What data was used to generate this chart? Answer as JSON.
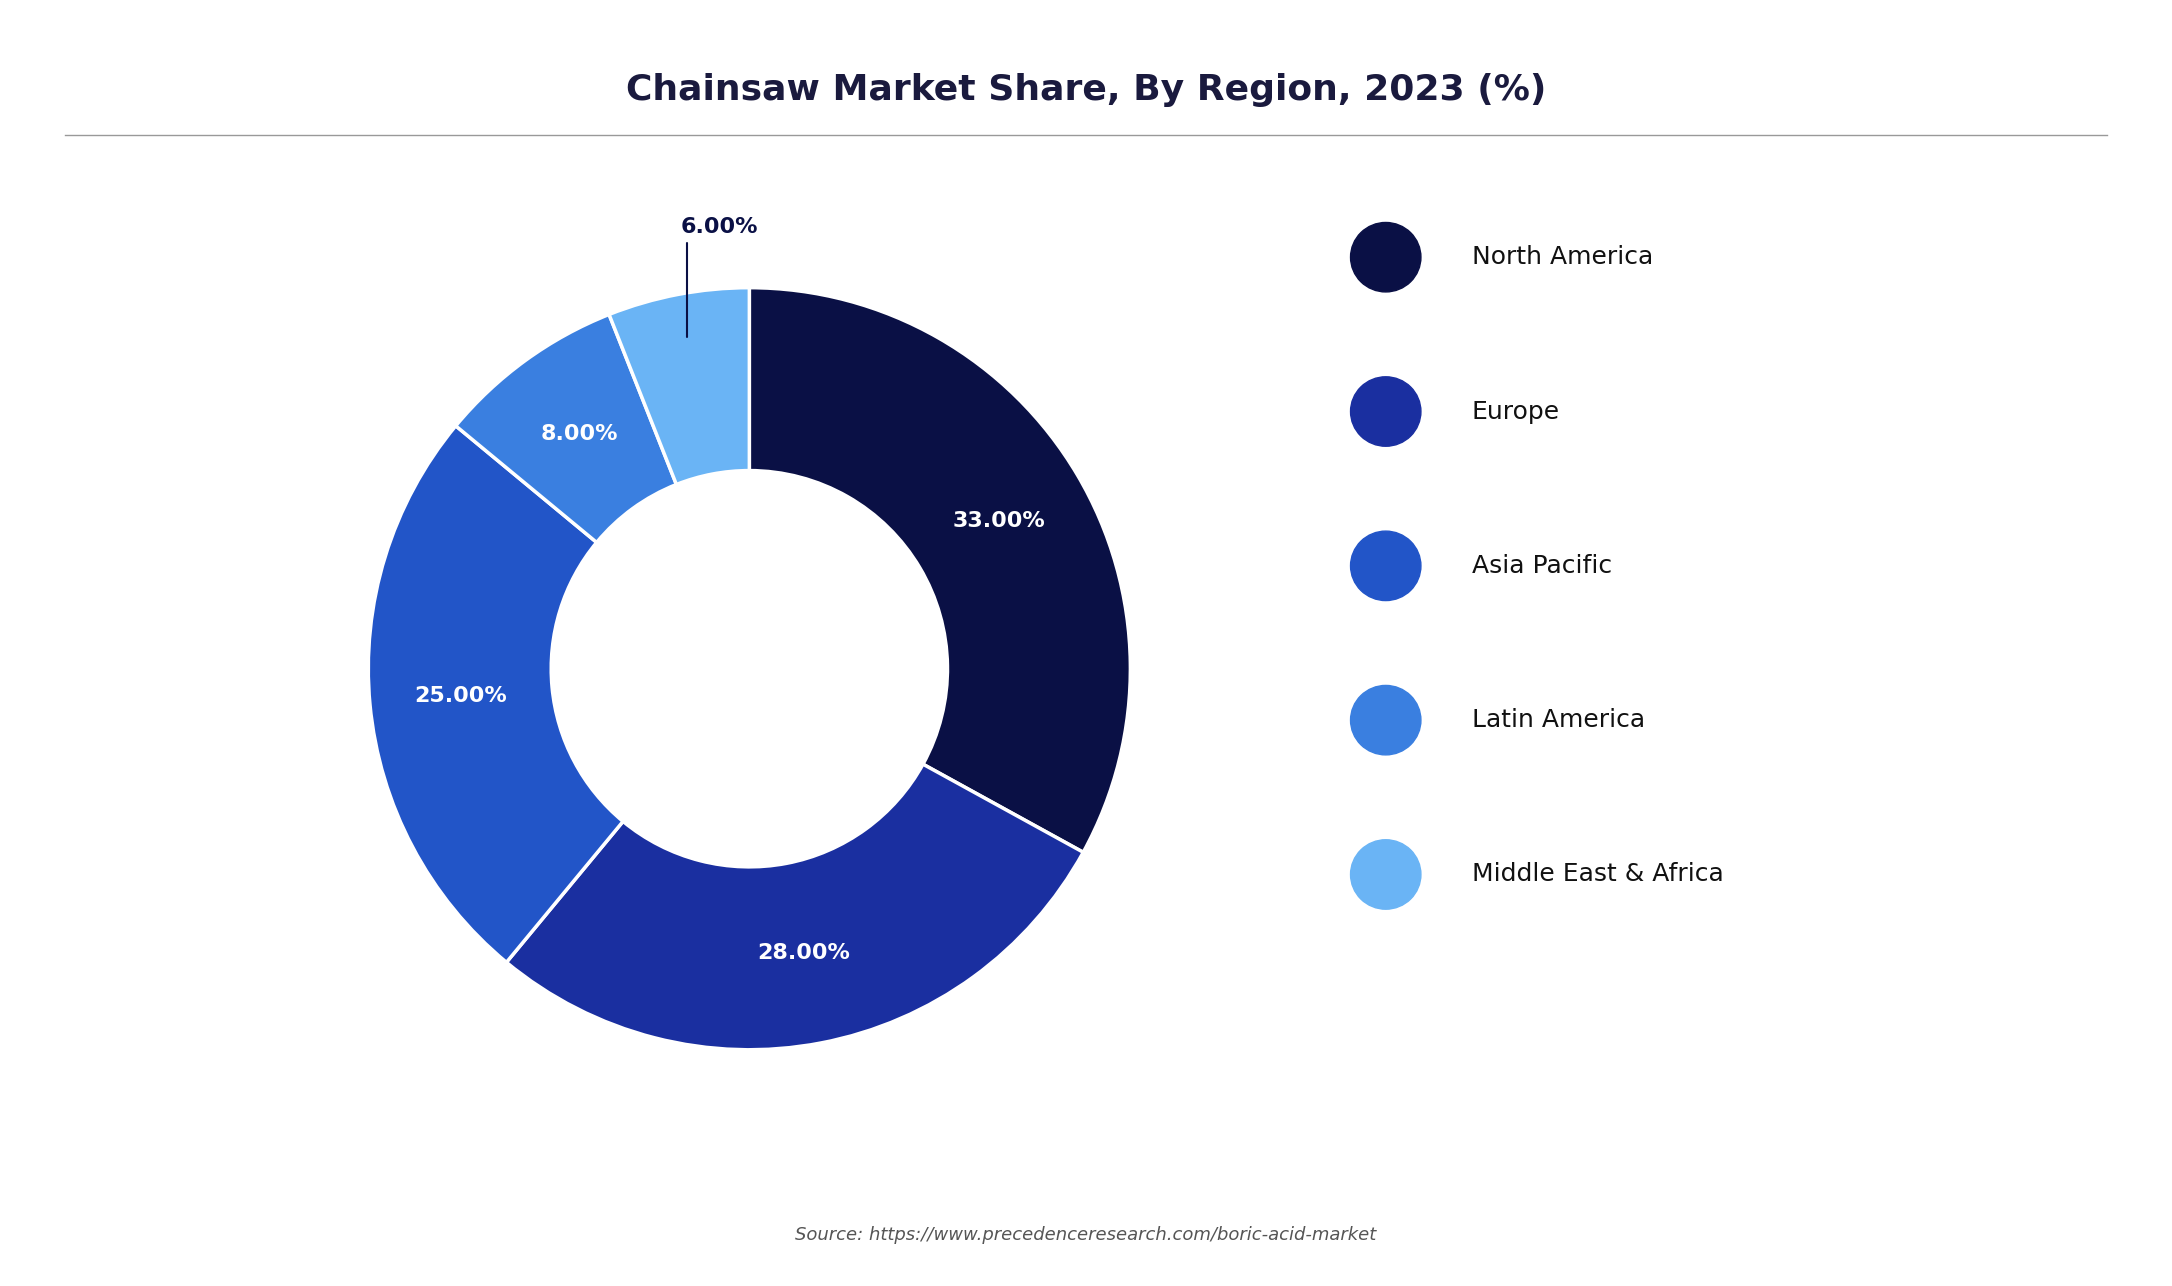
{
  "title": "Chainsaw Market Share, By Region, 2023 (%)",
  "labels": [
    "North America",
    "Europe",
    "Asia Pacific",
    "Latin America",
    "Middle East & Africa"
  ],
  "values": [
    33.0,
    28.0,
    25.0,
    8.0,
    6.0
  ],
  "pct_labels": [
    "33.00%",
    "28.00%",
    "25.00%",
    "8.00%",
    "6.00%"
  ],
  "colors": [
    "#0a1045",
    "#1a2fa0",
    "#2255c8",
    "#3a7fe0",
    "#6ab4f5"
  ],
  "source": "Source: https://www.precedenceresearch.com/boric-acid-market",
  "bg_color": "#ffffff",
  "title_fontsize": 26,
  "label_fontsize": 16,
  "legend_fontsize": 18,
  "source_fontsize": 13
}
